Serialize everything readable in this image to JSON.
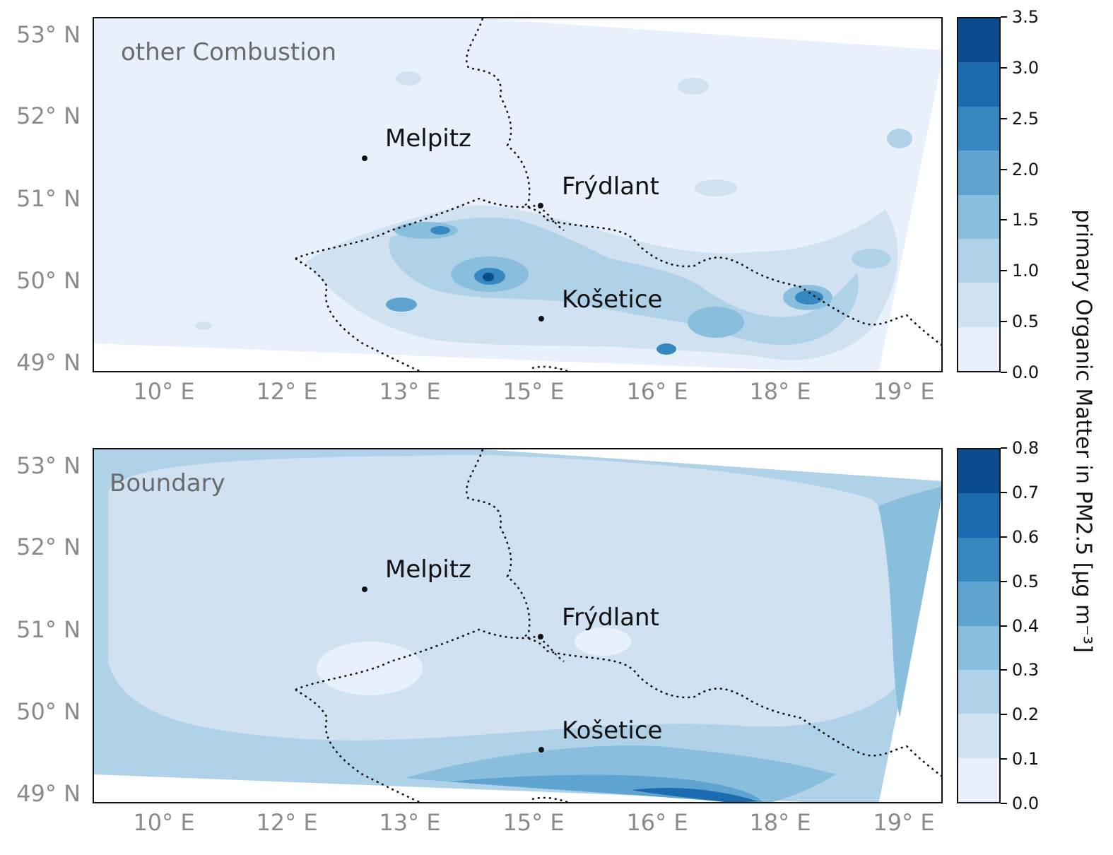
{
  "panels": [
    {
      "id": "top",
      "label": "other Combustion",
      "lat_ticks": [
        "53° N",
        "52° N",
        "51° N",
        "50° N",
        "49° N"
      ],
      "lon_ticks": [
        "10° E",
        "12° E",
        "13° E",
        "15° E",
        "16° E",
        "18° E",
        "19° E"
      ],
      "stations": [
        "Melpitz",
        "Frýdlant",
        "Košetice"
      ],
      "colorbar": {
        "ticks": [
          "0.0",
          "0.5",
          "1.0",
          "1.5",
          "2.0",
          "2.5",
          "3.0",
          "3.5"
        ],
        "colors": [
          "#e8f1fb",
          "#d0e1f2",
          "#b0d2e8",
          "#89bfdd",
          "#5fa3d0",
          "#3787c0",
          "#1c6aaf",
          "#0b4c8f"
        ]
      }
    },
    {
      "id": "bottom",
      "label": "Boundary",
      "lat_ticks": [
        "53° N",
        "52° N",
        "51° N",
        "50° N",
        "49° N"
      ],
      "lon_ticks": [
        "10° E",
        "12° E",
        "13° E",
        "15° E",
        "16° E",
        "18° E",
        "19° E"
      ],
      "stations": [
        "Melpitz",
        "Frýdlant",
        "Košetice"
      ],
      "colorbar": {
        "ticks": [
          "0.0",
          "0.1",
          "0.2",
          "0.3",
          "0.4",
          "0.5",
          "0.6",
          "0.7",
          "0.8"
        ],
        "colors": [
          "#e8f1fb",
          "#d0e1f2",
          "#b0d2e8",
          "#89bfdd",
          "#5fa3d0",
          "#3787c0",
          "#1c6aaf",
          "#0b4c8f"
        ]
      }
    }
  ],
  "colorbar_label": "primary Organic Matter in PM2.5 [µg m⁻³]"
}
